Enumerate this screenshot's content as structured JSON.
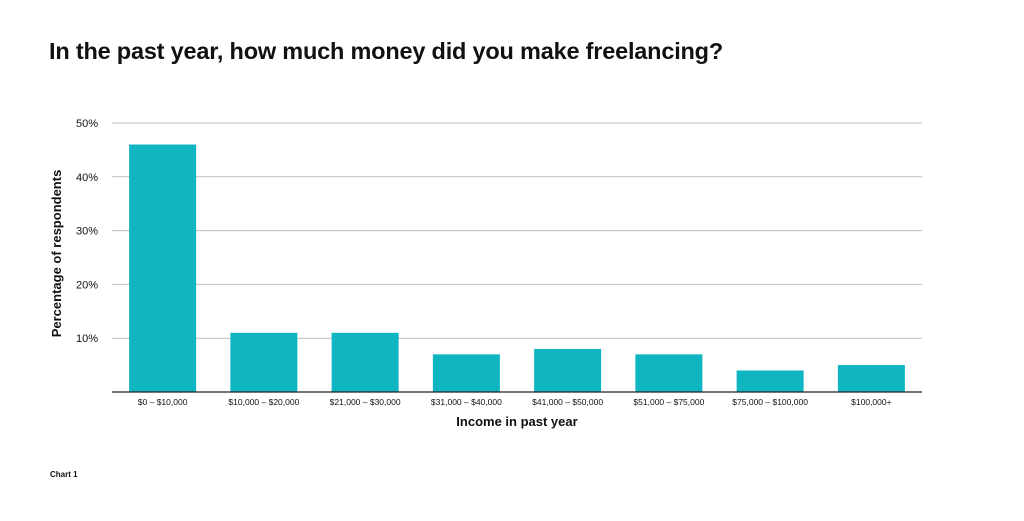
{
  "title": "In the past year, how much money did you make freelancing?",
  "footnote": "Chart 1",
  "colors": {
    "bar": "#0fb5c1",
    "grid": "#bdbdbd",
    "axis": "#222222",
    "text": "#111111"
  },
  "chart_data": {
    "type": "bar",
    "categories": [
      "$0 – $10,000",
      "$10,000 – $20,000",
      "$21,000 – $30,000",
      "$31,000 – $40,000",
      "$41,000 – $50,000",
      "$51,000 – $75,000",
      "$75,000 – $100,000",
      "$100,000+"
    ],
    "values": [
      46,
      11,
      11,
      7,
      8,
      7,
      4,
      5
    ],
    "xlabel": "Income in past year",
    "ylabel": "Percentage of respondents",
    "ylim": [
      0,
      50
    ],
    "yticks": [
      10,
      20,
      30,
      40,
      50
    ],
    "ytick_labels": [
      "10%",
      "20%",
      "30%",
      "40%",
      "50%"
    ],
    "grid": true
  }
}
